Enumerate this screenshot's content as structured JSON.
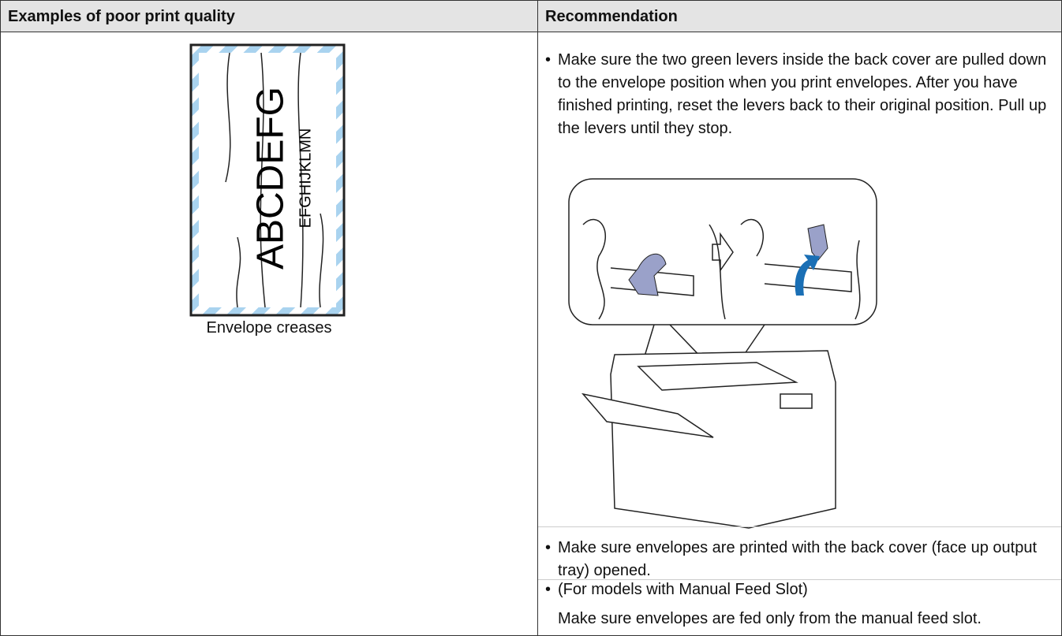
{
  "table": {
    "header": [
      "Examples of poor print quality",
      "Recommendation"
    ],
    "rows": [
      [
        {
          "example_text": "ABCDEFG",
          "example_subtext": "EFGHIJKLMN",
          "caption": "Envelope creases"
        },
        {
          "items": [
            [
              "Make sure the two green levers inside the back cover are pulled down to the envelope position when you print envelopes. After you have finished printing, reset the levers back to their original position. Pull up the levers until they stop."
            ],
            [
              "Make sure envelopes are printed with the back cover (face up output tray) opened."
            ],
            [
              "(For models with Manual Feed Slot)",
              "Make sure envelopes are fed only from the manual feed slot."
            ]
          ]
        }
      ]
    ]
  }
}
